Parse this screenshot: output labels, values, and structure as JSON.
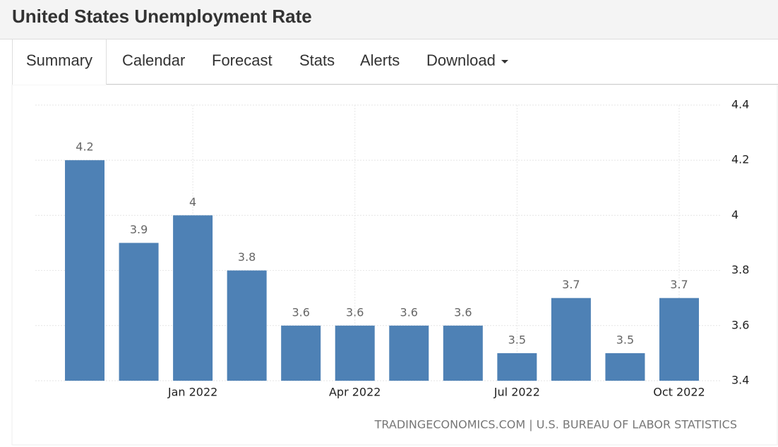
{
  "header": {
    "title": "United States Unemployment Rate"
  },
  "tabs": [
    "Summary",
    "Calendar",
    "Forecast",
    "Stats",
    "Alerts",
    "Download"
  ],
  "chart_data": {
    "type": "bar",
    "categories": [
      null,
      null,
      "Jan 2022",
      null,
      null,
      "Apr 2022",
      null,
      null,
      "Jul 2022",
      null,
      null,
      "Oct 2022"
    ],
    "values": [
      4.2,
      3.9,
      4,
      3.8,
      3.6,
      3.6,
      3.6,
      3.6,
      3.5,
      3.7,
      3.5,
      3.7
    ],
    "color": "#4e81b5",
    "ylim": [
      3.4,
      4.4
    ],
    "yticks": [
      3.4,
      3.6,
      3.8,
      4,
      4.2,
      4.4
    ],
    "grid": true,
    "source": "TRADINGECONOMICS.COM | U.S. BUREAU OF LABOR STATISTICS"
  }
}
